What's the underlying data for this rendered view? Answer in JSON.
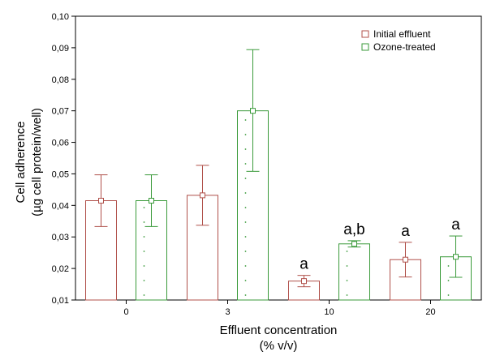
{
  "chart_data": {
    "type": "bar",
    "categories": [
      "0",
      "3",
      "10",
      "20"
    ],
    "series": [
      {
        "name": "Initial effluent",
        "color": "#b0504a",
        "values": [
          0.0415,
          0.0432,
          0.016,
          0.0228
        ],
        "error_low": [
          0.0333,
          0.0337,
          0.0142,
          0.0173
        ],
        "error_high": [
          0.0497,
          0.0527,
          0.0178,
          0.0283
        ],
        "labels": [
          "",
          "",
          "a",
          "a"
        ]
      },
      {
        "name": "Ozone-treated",
        "color": "#3a9a3a",
        "values": [
          0.0415,
          0.07,
          0.0278,
          0.0237
        ],
        "error_low": [
          0.0333,
          0.0508,
          0.0268,
          0.0172
        ],
        "error_high": [
          0.0497,
          0.0894,
          0.0288,
          0.0303
        ],
        "labels": [
          "",
          "",
          "a,b",
          "a"
        ]
      }
    ],
    "ylim": [
      0.01,
      0.1
    ],
    "yticks": [
      "0,01",
      "0,02",
      "0,03",
      "0,04",
      "0,05",
      "0,06",
      "0,07",
      "0,08",
      "0,09",
      "0,10"
    ],
    "xlabel": "Effluent concentration",
    "xlabel_unit": "(% v/v)",
    "ylabel": "Cell adherence",
    "ylabel_unit_prefix": "(",
    "ylabel_unit_mu": "µ",
    "ylabel_unit_rest": "g cell protein/well)",
    "legend_position": "top-right",
    "grid": false
  }
}
